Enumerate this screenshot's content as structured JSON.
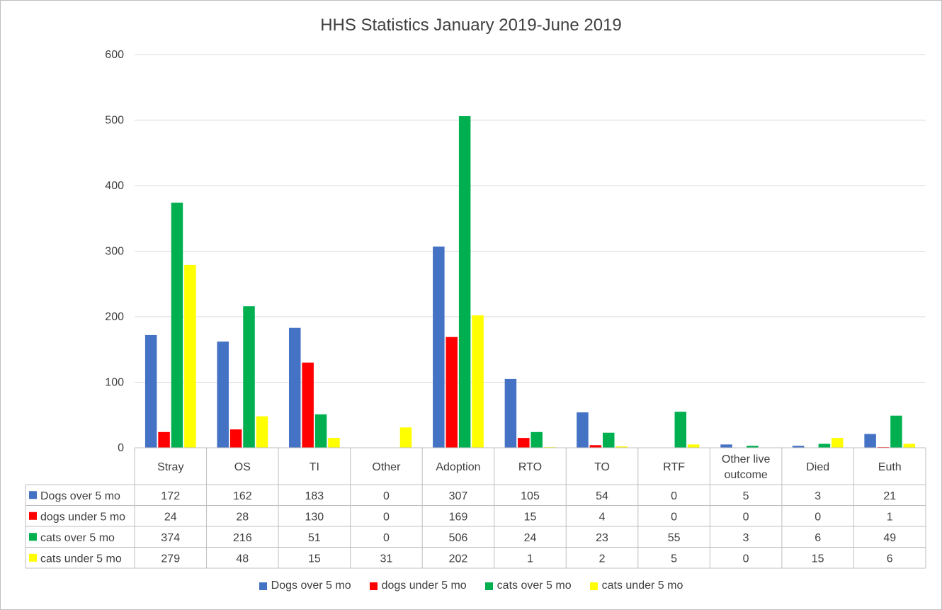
{
  "chart_data": {
    "type": "bar",
    "title": "HHS Statistics January 2019-June 2019",
    "categories": [
      "Stray",
      "OS",
      "TI",
      "Other",
      "Adoption",
      "RTO",
      "TO",
      "RTF",
      "Other live outcome",
      "Died",
      "Euth"
    ],
    "category_lines": [
      [
        "Stray"
      ],
      [
        "OS"
      ],
      [
        "TI"
      ],
      [
        "Other"
      ],
      [
        "Adoption"
      ],
      [
        "RTO"
      ],
      [
        "TO"
      ],
      [
        "RTF"
      ],
      [
        "Other live",
        "outcome"
      ],
      [
        "Died"
      ],
      [
        "Euth"
      ]
    ],
    "series": [
      {
        "name": "Dogs over 5 mo",
        "color": "#4472c4",
        "values": [
          172,
          162,
          183,
          0,
          307,
          105,
          54,
          0,
          5,
          3,
          21
        ]
      },
      {
        "name": "dogs under 5 mo",
        "color": "#ff0000",
        "values": [
          24,
          28,
          130,
          0,
          169,
          15,
          4,
          0,
          0,
          0,
          1
        ]
      },
      {
        "name": "cats over 5 mo",
        "color": "#00b050",
        "values": [
          374,
          216,
          51,
          0,
          506,
          24,
          23,
          55,
          3,
          6,
          49
        ]
      },
      {
        "name": "cats under 5 mo",
        "color": "#ffff00",
        "values": [
          279,
          48,
          15,
          31,
          202,
          1,
          2,
          5,
          0,
          15,
          6
        ]
      }
    ],
    "yticks": [
      0,
      100,
      200,
      300,
      400,
      500,
      600
    ],
    "ylim": [
      0,
      600
    ],
    "grid": true,
    "legend": "bottom",
    "data_table": true
  }
}
